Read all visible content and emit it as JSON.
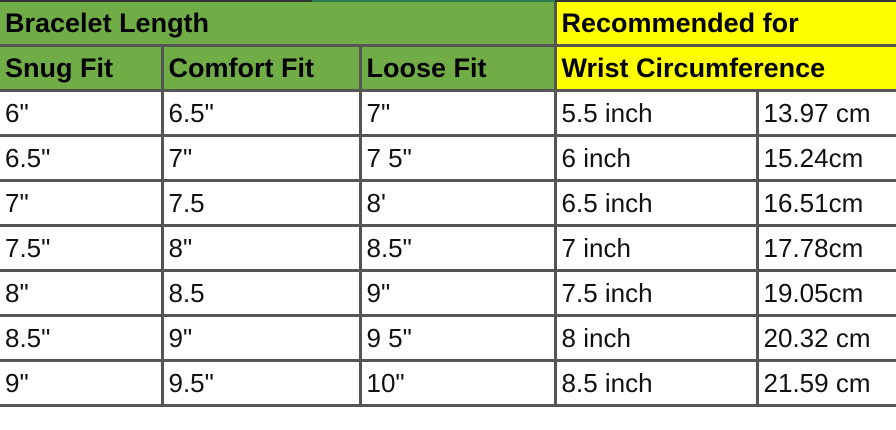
{
  "header": {
    "group_left": "Bracelet Length",
    "group_right": "Recommended for",
    "columns": [
      "Snug Fit",
      "Comfort Fit",
      "Loose Fit"
    ],
    "right_subheader": "Wrist Circumference"
  },
  "colors": {
    "green_header": "#70ad47",
    "yellow_header": "#ffff00",
    "grid": "#555555"
  },
  "rows": [
    [
      "6\"",
      "6.5\"",
      "7\"",
      "5.5 inch",
      "13.97 cm"
    ],
    [
      "6.5\"",
      "7\"",
      "7 5\"",
      "6 inch",
      "15.24cm"
    ],
    [
      "7\"",
      "7.5",
      "8'",
      "6.5 inch",
      "16.51cm"
    ],
    [
      "7.5\"",
      "8\"",
      "8.5\"",
      "7 inch",
      "17.78cm"
    ],
    [
      "8\"",
      "8.5",
      "9\"",
      "7.5 inch",
      "19.05cm"
    ],
    [
      "8.5\"",
      "9\"",
      "9 5\"",
      "8 inch",
      "20.32 cm"
    ],
    [
      "9\"",
      "9.5\"",
      "10\"",
      "8.5 inch",
      "21.59 cm"
    ]
  ]
}
